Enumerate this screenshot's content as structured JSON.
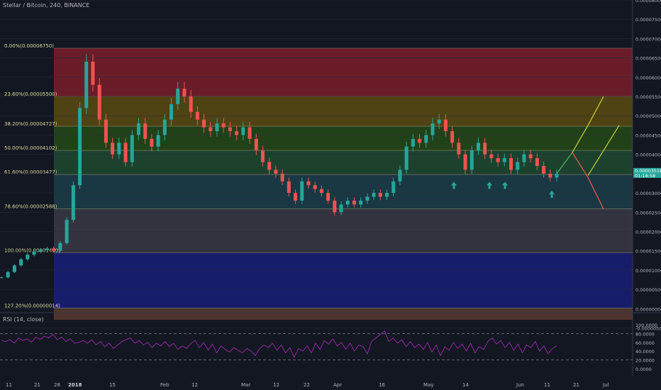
{
  "header": {
    "title": "Stellar / Bitcoin, 240, BINANCE"
  },
  "rsi_panel": {
    "label": "RSI (14, close)"
  },
  "colors": {
    "background": "#131722",
    "up": "#26a69a",
    "down": "#ef5350",
    "rsi_line": "#9c27b0",
    "projection_green": "#4caf50",
    "projection_yellow": "#c0ca33",
    "projection_red": "#ef5350",
    "arrow_marker": "#26a69a"
  },
  "chart_data": {
    "type": "candlestick",
    "main_price_axis": {
      "min": -5e-07,
      "max": 8e-05,
      "ticks": [
        "0.00008000",
        "0.00007500",
        "0.00007000",
        "0.00006500",
        "0.00006000",
        "0.00005500",
        "0.00005000",
        "0.00004500",
        "0.00004000",
        "0.00003500",
        "0.00003000",
        "0.00002500",
        "0.00002000",
        "0.00001500",
        "0.00001000",
        "0.00000500",
        "0.00000000",
        "-0.00000500"
      ],
      "current_price_label": "0.00003518",
      "current_time_label": "01:18:58"
    },
    "x_axis": {
      "tick_labels": [
        "11",
        "21",
        "28",
        "2018",
        "15",
        "Feb",
        "12",
        "Mar",
        "12",
        "22",
        "Apr",
        "16",
        "May",
        "14",
        "Jun",
        "11",
        "21",
        "Jul"
      ]
    },
    "fibonacci": [
      {
        "label": "0.00%(0.00006750)",
        "value": 6.75e-05,
        "fill": "#7a1f2a"
      },
      {
        "label": "23.60%(0.00005500)",
        "value": 5.5e-05,
        "fill": "#5a4a10"
      },
      {
        "label": "38.20%(0.00004727)",
        "value": 4.727e-05,
        "fill": "#254a18"
      },
      {
        "label": "50.00%(0.00004102)",
        "value": 4.102e-05,
        "fill": "#1e4a30"
      },
      {
        "label": "61.60%(0.00003477)",
        "value": 3.477e-05,
        "fill": "#1b3e4a"
      },
      {
        "label": "78.60%(0.00002588)",
        "value": 2.588e-05,
        "fill": "#3a3a44"
      },
      {
        "label": "100.00%(0.00001450)",
        "value": 1.45e-05,
        "fill": "#1a1f78"
      },
      {
        "label": "127.20%(0.00000014)",
        "value": 1.4e-07,
        "fill": "#5a3a30"
      }
    ],
    "fib_bottom": -2.9e-06,
    "price_series": [
      [
        8.1e-06
      ],
      [
        9.5e-06
      ],
      [
        1.12e-05
      ],
      [
        1.28e-05
      ],
      [
        1.4e-05
      ],
      [
        1.48e-05
      ],
      [
        1.52e-05
      ],
      [
        1.56e-05
      ],
      [
        1.5e-05
      ],
      [
        1.7e-05
      ],
      [
        2.3e-05
      ],
      [
        3.2e-05
      ],
      [
        5.2e-05
      ],
      [
        6.4e-05
      ],
      [
        5.8e-05
      ],
      [
        4.9e-05
      ],
      [
        4.3e-05
      ],
      [
        4e-05
      ],
      [
        4.3e-05
      ],
      [
        3.8e-05
      ],
      [
        4.5e-05
      ],
      [
        4.8e-05
      ],
      [
        4.4e-05
      ],
      [
        4.2e-05
      ],
      [
        4.5e-05
      ],
      [
        4.9e-05
      ],
      [
        5.3e-05
      ],
      [
        5.7e-05
      ],
      [
        5.5e-05
      ],
      [
        5.1e-05
      ],
      [
        4.9e-05
      ],
      [
        4.7e-05
      ],
      [
        4.6e-05
      ],
      [
        4.8e-05
      ],
      [
        4.7e-05
      ],
      [
        4.6e-05
      ],
      [
        4.5e-05
      ],
      [
        4.7e-05
      ],
      [
        4.4e-05
      ],
      [
        4.1e-05
      ],
      [
        3.8e-05
      ],
      [
        3.6e-05
      ],
      [
        3.5e-05
      ],
      [
        3.3e-05
      ],
      [
        3e-05
      ],
      [
        2.8e-05
      ],
      [
        3.3e-05
      ],
      [
        3.2e-05
      ],
      [
        3.1e-05
      ],
      [
        3e-05
      ],
      [
        2.8e-05
      ],
      [
        2.5e-05
      ],
      [
        2.7e-05
      ],
      [
        2.8e-05
      ],
      [
        2.7e-05
      ],
      [
        2.8e-05
      ],
      [
        2.9e-05
      ],
      [
        3e-05
      ],
      [
        2.9e-05
      ],
      [
        3e-05
      ],
      [
        3.3e-05
      ],
      [
        3.6e-05
      ],
      [
        4.2e-05
      ],
      [
        4.4e-05
      ],
      [
        4.3e-05
      ],
      [
        4.5e-05
      ],
      [
        4.8e-05
      ],
      [
        4.9e-05
      ],
      [
        4.6e-05
      ],
      [
        4.3e-05
      ],
      [
        4e-05
      ],
      [
        3.6e-05
      ],
      [
        4.1e-05
      ],
      [
        4.3e-05
      ],
      [
        4e-05
      ],
      [
        3.9e-05
      ],
      [
        3.8e-05
      ],
      [
        3.9e-05
      ],
      [
        3.6e-05
      ],
      [
        3.8e-05
      ],
      [
        4e-05
      ],
      [
        3.9e-05
      ],
      [
        3.7e-05
      ],
      [
        3.5e-05
      ],
      [
        3.4e-05
      ],
      [
        3.5e-05
      ]
    ],
    "fib_anchor_date_label": "28",
    "projection_lines": [
      {
        "color": "green",
        "points": [
          [
            3.5e-05,
            0
          ],
          [
            4.05e-05,
            1
          ]
        ]
      },
      {
        "color": "yellow",
        "points": [
          [
            4.05e-05,
            1
          ],
          [
            4.75e-05,
            2
          ]
        ]
      },
      {
        "color": "yellow",
        "points": [
          [
            4.75e-05,
            2
          ],
          [
            5.5e-05,
            3
          ]
        ]
      },
      {
        "color": "yellow",
        "points": [
          [
            3.45e-05,
            2
          ],
          [
            4.75e-05,
            4
          ]
        ]
      },
      {
        "color": "red",
        "points": [
          [
            4.05e-05,
            1
          ],
          [
            3.4e-05,
            2
          ],
          [
            2.58e-05,
            3
          ]
        ]
      }
    ],
    "support_arrows": [
      3.38e-05,
      3.38e-05,
      3.38e-05,
      3.15e-05
    ],
    "rsi": {
      "ticks": [
        "100.0000",
        "80.0000",
        "60.0000",
        "40.0000",
        "20.0000",
        "0.0000"
      ],
      "overbought": 80,
      "oversold": 20,
      "values": [
        64,
        62,
        66,
        58,
        70,
        64,
        68,
        60,
        72,
        66,
        74,
        70,
        78,
        66,
        72,
        62,
        68,
        58,
        60,
        64,
        58,
        66,
        54,
        62,
        50,
        58,
        46,
        54,
        62,
        66,
        70,
        58,
        64,
        54,
        60,
        48,
        58,
        52,
        62,
        50,
        58,
        44,
        52,
        46,
        58,
        64,
        48,
        60,
        42,
        56,
        36,
        52,
        44,
        38,
        48,
        42,
        36,
        46,
        40,
        30,
        46,
        54,
        48,
        58,
        42,
        54,
        36,
        48,
        26,
        46,
        40,
        52,
        36,
        58,
        44,
        64,
        56,
        68,
        52,
        60,
        44,
        58,
        40,
        54,
        50,
        34,
        62,
        70,
        78,
        86,
        62,
        70,
        58,
        66,
        50,
        62,
        48,
        56,
        44,
        60,
        38,
        54,
        30,
        50,
        42,
        60,
        46,
        56,
        40,
        58,
        36,
        50,
        44,
        62,
        70,
        56,
        64,
        48,
        60,
        42,
        56,
        36,
        54,
        48,
        62,
        40,
        52,
        34,
        46,
        52
      ]
    }
  }
}
